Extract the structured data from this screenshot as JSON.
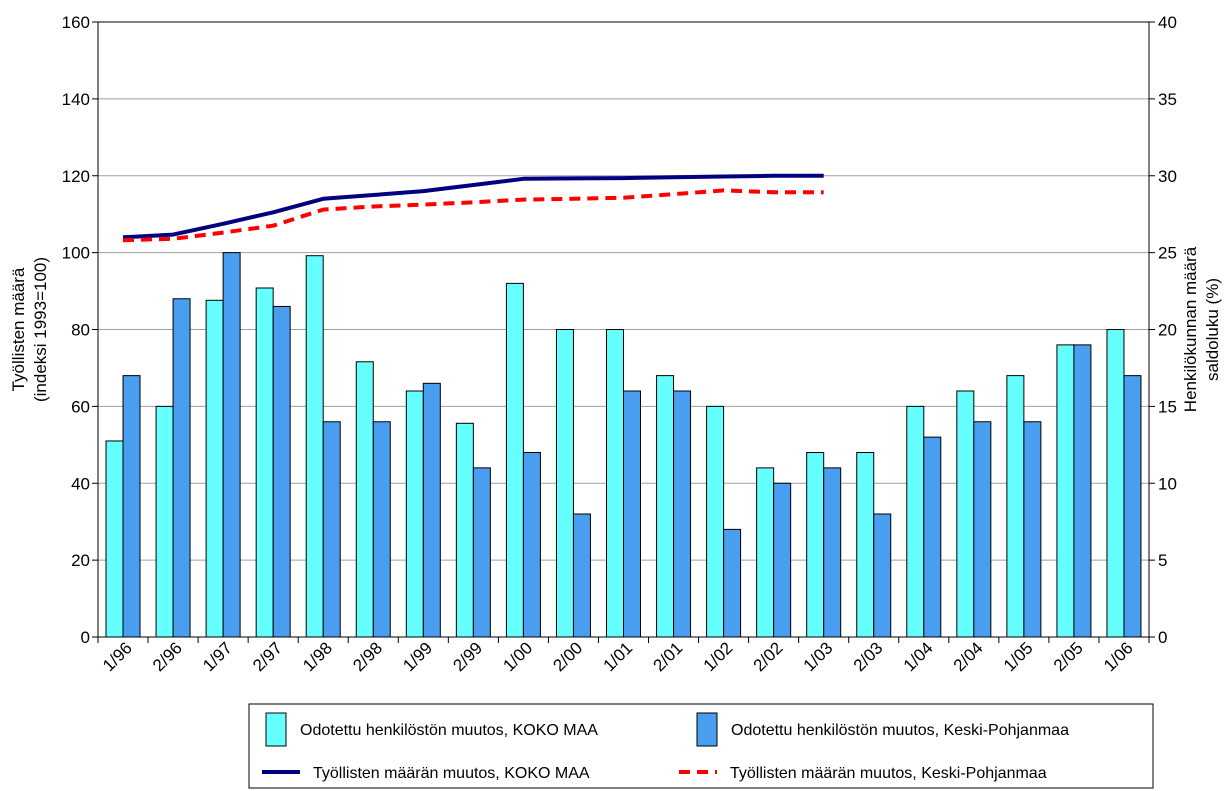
{
  "chart_data": {
    "type": "bar",
    "categories": [
      "1/96",
      "2/96",
      "1/97",
      "2/97",
      "1/98",
      "2/98",
      "1/99",
      "2/99",
      "1/00",
      "2/00",
      "1/01",
      "2/01",
      "1/02",
      "2/02",
      "1/03",
      "2/03",
      "1/04",
      "2/04",
      "1/05",
      "2/05",
      "1/06"
    ],
    "left_axis": {
      "title_line1": "Työllisten määrä",
      "title_line2": "(indeksi 1993=100)",
      "ylim": [
        0,
        160
      ],
      "ticks": [
        0,
        20,
        40,
        60,
        80,
        100,
        120,
        140,
        160
      ]
    },
    "right_axis": {
      "title_line1": "Henkilökunnan määrä",
      "title_line2": "saldoluku (%)",
      "ylim": [
        0,
        40
      ],
      "ticks": [
        0,
        5,
        10,
        15,
        20,
        25,
        30,
        35,
        40
      ]
    },
    "grid": true,
    "bar_series": [
      {
        "name": "Odotettu henkilöstön muutos, KOKO MAA",
        "axis": "right",
        "color": "#66ffff",
        "values": [
          12.75,
          15,
          21.9,
          22.7,
          24.8,
          17.9,
          16,
          13.9,
          23,
          20,
          20,
          17,
          15,
          11,
          12,
          12,
          15,
          16,
          17,
          19,
          20
        ]
      },
      {
        "name": "Odotettu henkilöstön muutos, Keski-Pohjanmaa",
        "axis": "right",
        "color": "#4a9ef0",
        "values": [
          17,
          22,
          25,
          21.5,
          14,
          14,
          16.5,
          11,
          12,
          8,
          16,
          16,
          7,
          10,
          11,
          8,
          13,
          14,
          14,
          19,
          17
        ]
      }
    ],
    "line_series": [
      {
        "name": "Työllisten määrän  muutos, KOKO MAA",
        "axis": "left",
        "color": "#000080",
        "style": "solid",
        "values": [
          104,
          104.7,
          107.5,
          110.5,
          114,
          115,
          116,
          117.6,
          119.2,
          119.3,
          119.4,
          119.6,
          119.8,
          120,
          120,
          null,
          null,
          null,
          null,
          null,
          null
        ]
      },
      {
        "name": "Työllisten määrän muutos, Keski-Pohjanmaa",
        "axis": "left",
        "color": "#ff0000",
        "style": "dashed",
        "values": [
          103.2,
          103.6,
          105.2,
          107,
          111.2,
          112,
          112.5,
          113.1,
          113.8,
          114,
          114.3,
          115.2,
          116.2,
          115.7,
          115.7,
          null,
          null,
          null,
          null,
          null,
          null
        ]
      }
    ]
  }
}
